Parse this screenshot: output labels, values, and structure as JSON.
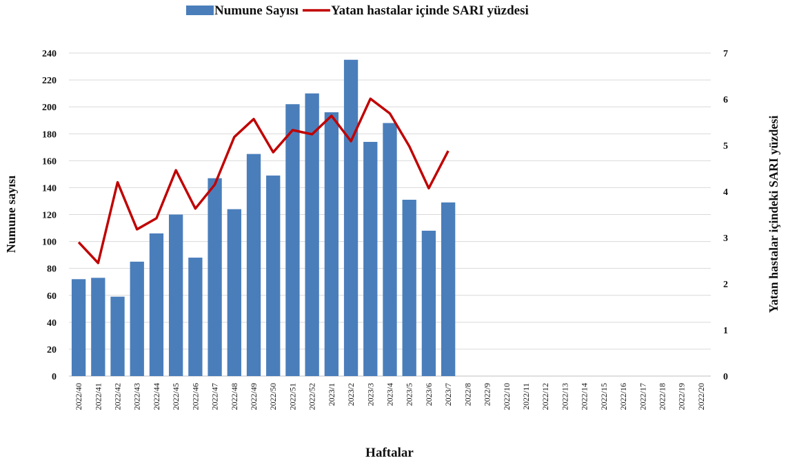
{
  "chart_data": {
    "type": "bar-line",
    "x_label": "Haftalar",
    "y_label": "Numune sayısı",
    "y2_label": "Yatan hastalar içindeki SARI yüzdesi",
    "categories": [
      "2022/40",
      "2022/41",
      "2022/42",
      "2022/43",
      "2022/44",
      "2022/45",
      "2022/46",
      "2022/47",
      "2022/48",
      "2022/49",
      "2022/50",
      "2022/51",
      "2022/52",
      "2023/1",
      "2023/2",
      "2023/3",
      "2023/4",
      "2023/5",
      "2023/6",
      "2023/7",
      "2022/8",
      "2022/9",
      "2022/10",
      "2022/11",
      "2022/12",
      "2022/13",
      "2022/14",
      "2022/15",
      "2022/16",
      "2022/17",
      "2022/18",
      "2022/19",
      "2022/20"
    ],
    "series": [
      {
        "name": "Numune Sayısı",
        "type": "bar",
        "color": "#4a7ebb",
        "values": [
          72,
          73,
          59,
          85,
          106,
          120,
          88,
          147,
          124,
          165,
          149,
          202,
          210,
          196,
          235,
          174,
          188,
          131,
          108,
          129,
          null,
          null,
          null,
          null,
          null,
          null,
          null,
          null,
          null,
          null,
          null,
          null,
          null
        ]
      },
      {
        "name": "Yatan hastalar içinde SARI yüzdesi",
        "type": "line",
        "axis": "y2",
        "color": "#c00000",
        "values": [
          2.9,
          2.45,
          4.2,
          3.18,
          3.42,
          4.46,
          3.63,
          4.15,
          5.18,
          5.57,
          4.85,
          5.33,
          5.24,
          5.64,
          5.09,
          6.01,
          5.69,
          4.98,
          4.07,
          4.88,
          null,
          null,
          null,
          null,
          null,
          null,
          null,
          null,
          null,
          null,
          null,
          null,
          null
        ]
      }
    ],
    "ylim": [
      0,
      240
    ],
    "yticks": [
      0,
      20,
      40,
      60,
      80,
      100,
      120,
      140,
      160,
      180,
      200,
      220,
      240
    ],
    "y2lim": [
      0,
      7
    ],
    "y2ticks": [
      0,
      1,
      2,
      3,
      4,
      5,
      6,
      7
    ],
    "grid": true
  }
}
